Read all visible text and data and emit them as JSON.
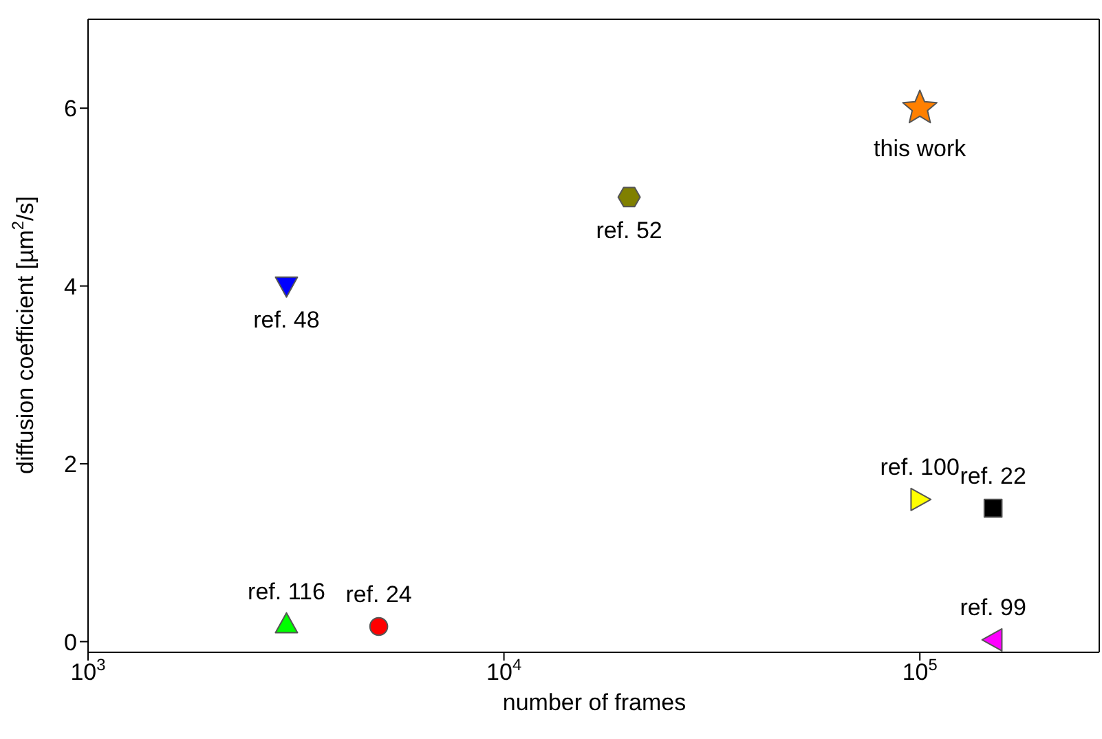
{
  "chart_data": {
    "type": "scatter",
    "xlabel": "number of frames",
    "ylabel": "diffusion coefficient [µm$^{2}$/s]",
    "log": "x",
    "xlim": [
      1000,
      270000
    ],
    "xticks": [
      {
        "value": 1000,
        "label": "10$^{3}$"
      },
      {
        "value": 10000,
        "label": "10$^{4}$"
      },
      {
        "value": 100000,
        "label": "10$^{5}$"
      }
    ],
    "ylim": [
      -0.12,
      7
    ],
    "yticks": [
      0,
      2,
      4,
      6
    ],
    "series": [
      {
        "name": "ref. 48",
        "color": "#0000ff",
        "marker": "triangle-down",
        "x": [
          3000
        ],
        "values": [
          4
        ]
      },
      {
        "name": "ref. 52",
        "color": "#808000",
        "x": [
          20000
        ],
        "values": [
          5
        ]
      },
      {
        "name": "this work",
        "color": "#ff8000",
        "marker": "star",
        "x": [
          100000
        ],
        "values": [
          6
        ]
      },
      {
        "name": "ref. 100",
        "color": "#ffff00",
        "marker": "triangle-right",
        "x": [
          100000
        ],
        "values": [
          1.6
        ]
      },
      {
        "name": "ref. 22",
        "color": "#000000",
        "marker": "square",
        "x": [
          150000
        ],
        "values": [
          1.5
        ]
      },
      {
        "name": "ref. 99",
        "color": "#ff00ff",
        "marker": "triangle-left",
        "x": [
          150000
        ],
        "values": [
          0.02
        ]
      },
      {
        "name": "ref. 116",
        "color": "#00ff00",
        "marker": "triangle",
        "x": [
          3000
        ],
        "values": [
          0.2
        ]
      },
      {
        "name": "ref. 24",
        "color": "#ff0000",
        "marker": "circle",
        "x": [
          5000
        ],
        "values": [
          0.17
        ]
      }
    ]
  }
}
